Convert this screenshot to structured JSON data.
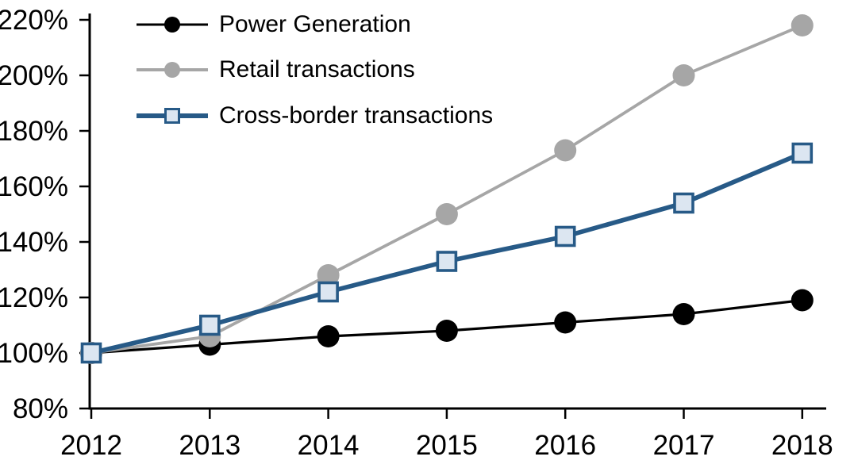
{
  "chart_data": {
    "type": "line",
    "title": "",
    "xlabel": "",
    "ylabel": "",
    "x_labels": [
      "2012",
      "2013",
      "2014",
      "2015",
      "2016",
      "2017",
      "2018"
    ],
    "y_axis": {
      "min": 80,
      "max": 220,
      "step": 20,
      "unit": "%"
    },
    "y_tick_labels": [
      "80%",
      "100%",
      "120%",
      "140%",
      "160%",
      "180%",
      "200%",
      "220%"
    ],
    "grid": false,
    "legend_position": "top-left-inside",
    "background_color": "#FFFFFF",
    "axis_color": "#000000",
    "series": [
      {
        "name": "Power Generation",
        "marker": "circle",
        "color": "#000000",
        "marker_fill": "#000000",
        "values": [
          100,
          103,
          106,
          108,
          111,
          114,
          119
        ]
      },
      {
        "name": "Retail transactions",
        "marker": "circle",
        "color": "#A6A6A6",
        "marker_fill": "#A6A6A6",
        "values": [
          100,
          106,
          128,
          150,
          173,
          200,
          218
        ]
      },
      {
        "name": "Cross-border transactions",
        "marker": "square",
        "color": "#275A87",
        "marker_fill": "#DCE6F1",
        "values": [
          100,
          110,
          122,
          133,
          142,
          154,
          172
        ]
      }
    ]
  }
}
